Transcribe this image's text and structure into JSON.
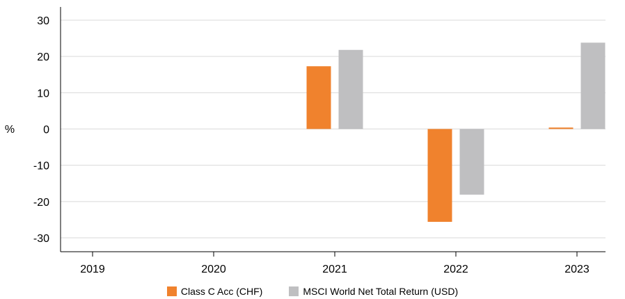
{
  "chart_data": {
    "type": "bar",
    "categories": [
      "2019",
      "2020",
      "2021",
      "2022",
      "2023"
    ],
    "series": [
      {
        "name": "Class C Acc (CHF)",
        "color": "#F0822D",
        "values": [
          null,
          null,
          17.3,
          -25.6,
          0.4
        ]
      },
      {
        "name": "MSCI World Net  Total Return (USD)",
        "color": "#BFBFC1",
        "values": [
          null,
          null,
          21.8,
          -18.1,
          23.8
        ]
      }
    ],
    "title": "",
    "xlabel": "",
    "ylabel": "%",
    "ylim": [
      -30,
      30
    ],
    "yticks": [
      "30",
      "20",
      "10",
      "0",
      "-10",
      "-20",
      "-30"
    ],
    "grid": true,
    "legend_position": "bottom-center"
  }
}
